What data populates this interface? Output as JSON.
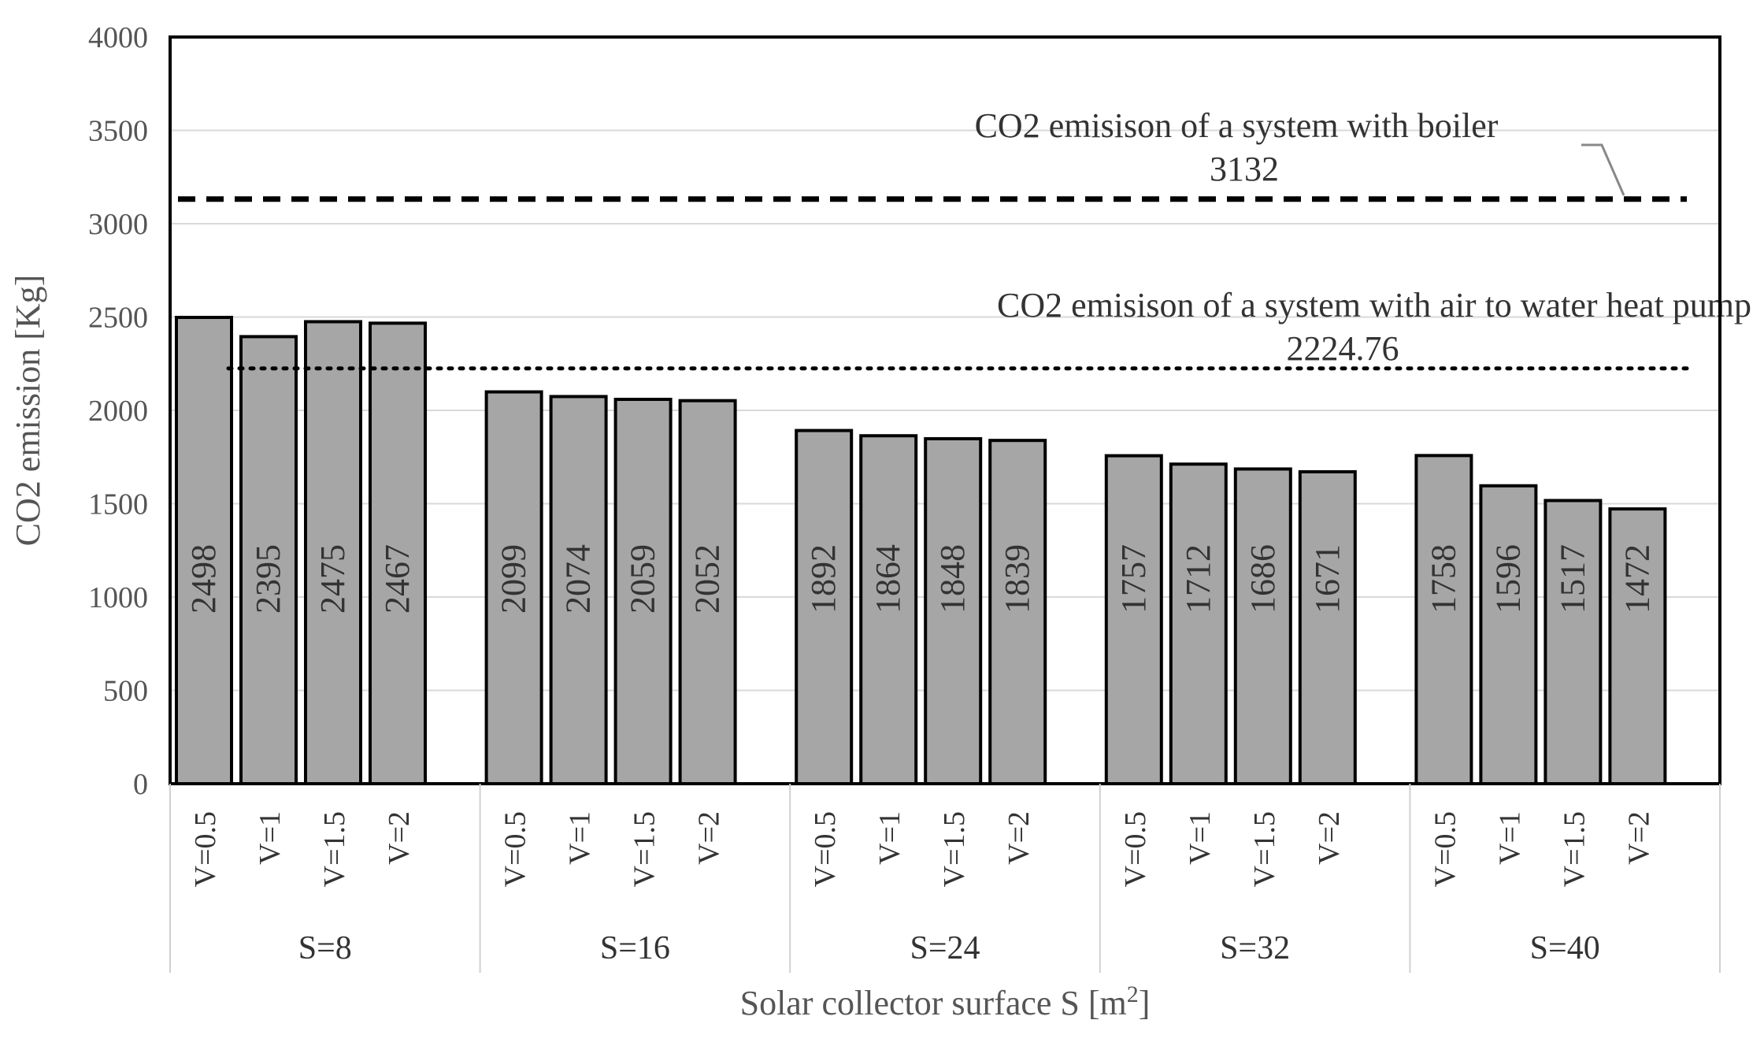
{
  "chart_data": {
    "type": "bar",
    "title": "",
    "ylabel": "CO2  emission [Kg]",
    "xlabel": "Solar collector surface S [m",
    "xlabel_sup": "2",
    "xlabel_end": "]",
    "ylim": [
      0,
      4000
    ],
    "yticks": [
      0,
      500,
      1000,
      1500,
      2000,
      2500,
      3000,
      3500,
      4000
    ],
    "groups": [
      {
        "label": "S=8",
        "bars": [
          {
            "label": "V=0.5",
            "value": 2498
          },
          {
            "label": "V=1",
            "value": 2395
          },
          {
            "label": "V=1.5",
            "value": 2475
          },
          {
            "label": "V=2",
            "value": 2467
          }
        ]
      },
      {
        "label": "S=16",
        "bars": [
          {
            "label": "V=0.5",
            "value": 2099
          },
          {
            "label": "V=1",
            "value": 2074
          },
          {
            "label": "V=1.5",
            "value": 2059
          },
          {
            "label": "V=2",
            "value": 2052
          }
        ]
      },
      {
        "label": "S=24",
        "bars": [
          {
            "label": "V=0.5",
            "value": 1892
          },
          {
            "label": "V=1",
            "value": 1864
          },
          {
            "label": "V=1.5",
            "value": 1848
          },
          {
            "label": "V=2",
            "value": 1839
          }
        ]
      },
      {
        "label": "S=32",
        "bars": [
          {
            "label": "V=0.5",
            "value": 1757
          },
          {
            "label": "V=1",
            "value": 1712
          },
          {
            "label": "V=1.5",
            "value": 1686
          },
          {
            "label": "V=2",
            "value": 1671
          }
        ]
      },
      {
        "label": "S=40",
        "bars": [
          {
            "label": "V=0.5",
            "value": 1758
          },
          {
            "label": "V=1",
            "value": 1596
          },
          {
            "label": "V=1.5",
            "value": 1517
          },
          {
            "label": "V=2",
            "value": 1472
          }
        ]
      }
    ],
    "reference_lines": [
      {
        "name": "boiler",
        "value": 3132,
        "style": "dashed",
        "label": "CO2 emisison of a system with boiler",
        "value_label": "3132"
      },
      {
        "name": "heat-pump",
        "value": 2224.76,
        "style": "dotted",
        "label": "CO2 emisison of a system with air to water heat pump",
        "value_label": "2224.76"
      }
    ],
    "bar_color": "#a6a6a6",
    "bar_edge_color": "#000000",
    "grid": true
  }
}
